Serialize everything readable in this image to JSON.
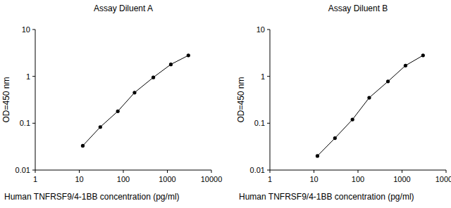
{
  "chart_data": [
    {
      "type": "line",
      "title": "Assay Diluent A",
      "xlabel": "Human TNFRSF9/4-1BB concentration (pg/ml)",
      "ylabel": "OD=450 nm",
      "x": [
        12,
        30,
        75,
        180,
        480,
        1200,
        3000
      ],
      "values": [
        0.033,
        0.083,
        0.18,
        0.45,
        0.95,
        1.8,
        2.8
      ],
      "color": "#000000",
      "marker": "circle",
      "log": true,
      "xlim": [
        1,
        10000
      ],
      "ylim": [
        0.01,
        10
      ],
      "xticks": [
        1,
        10,
        100,
        1000,
        10000
      ],
      "yticks": [
        0.01,
        0.1,
        1,
        10
      ]
    },
    {
      "type": "line",
      "title": "Assay Diluent B",
      "xlabel": "Human TNFRSF9/4-1BB concentration (pg/ml)",
      "ylabel": "OD=450 nm",
      "x": [
        12,
        30,
        75,
        180,
        480,
        1200,
        3000
      ],
      "values": [
        0.02,
        0.048,
        0.12,
        0.35,
        0.78,
        1.7,
        2.8
      ],
      "color": "#000000",
      "marker": "circle",
      "log": true,
      "xlim": [
        1,
        10000
      ],
      "ylim": [
        0.01,
        10
      ],
      "xticks": [
        1,
        10,
        100,
        1000,
        10000
      ],
      "yticks": [
        0.01,
        0.1,
        1,
        10
      ]
    }
  ]
}
